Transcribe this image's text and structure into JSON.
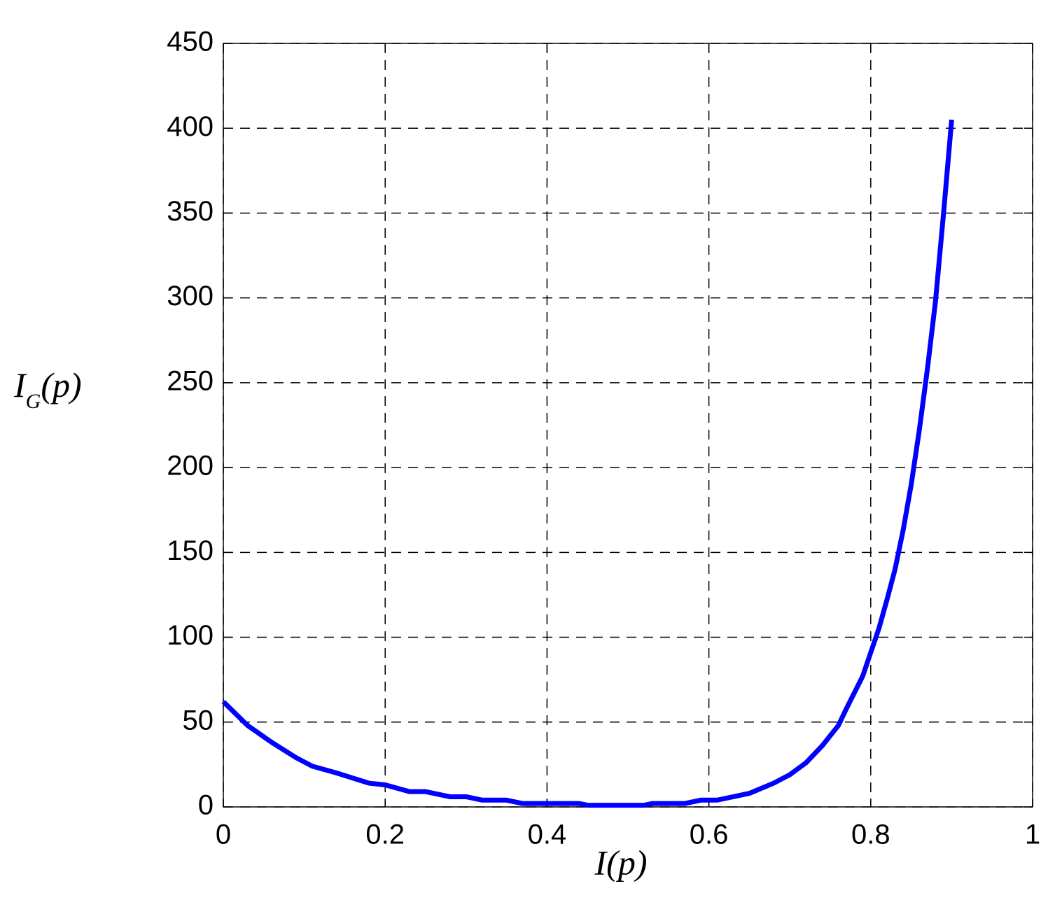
{
  "chart_data": {
    "type": "line",
    "xlabel": "I(p)",
    "ylabel": [
      "I",
      "G",
      "(p)"
    ],
    "x": [
      0,
      0.03,
      0.06,
      0.09,
      0.11,
      0.14,
      0.18,
      0.2,
      0.23,
      0.25,
      0.28,
      0.3,
      0.32,
      0.35,
      0.37,
      0.4,
      0.44,
      0.45,
      0.5,
      0.52,
      0.53,
      0.57,
      0.59,
      0.61,
      0.62,
      0.65,
      0.68,
      0.7,
      0.72,
      0.74,
      0.76,
      0.77,
      0.79,
      0.8,
      0.81,
      0.82,
      0.83,
      0.84,
      0.85,
      0.86,
      0.87,
      0.88,
      0.89,
      0.9
    ],
    "values": [
      62,
      48,
      38,
      29,
      24,
      20,
      14,
      13,
      9,
      9,
      6,
      6,
      4,
      4,
      2,
      2,
      2,
      1,
      1,
      1,
      2,
      2,
      4,
      4,
      5,
      8,
      14,
      19,
      26,
      36,
      48,
      58,
      77,
      91,
      105,
      122,
      140,
      163,
      190,
      222,
      258,
      298,
      350,
      405
    ],
    "color": "#0000ff",
    "xlim": [
      0,
      1
    ],
    "xticks": [
      0,
      0.2,
      0.4,
      0.6,
      0.8,
      1
    ],
    "ylim": [
      0,
      450
    ],
    "yticks": [
      0,
      50,
      100,
      150,
      200,
      250,
      300,
      350,
      400,
      450
    ],
    "grid": true
  }
}
